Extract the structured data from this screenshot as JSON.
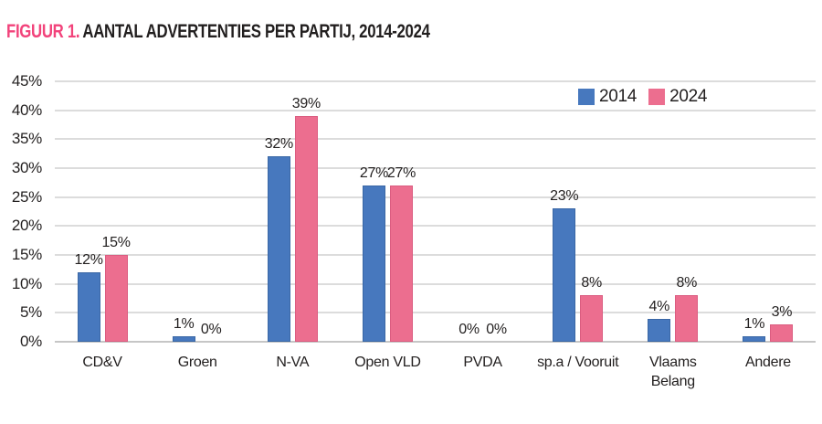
{
  "figure": {
    "label": "FIGUUR 1.",
    "title": "AANTAL ADVERTENTIES PER PARTIJ, 2014-2024",
    "label_color": "#F2437B",
    "text_color": "#221F1F"
  },
  "chart_data": {
    "type": "bar",
    "title": "FIGUUR 1. AANTAL ADVERTENTIES PER PARTIJ, 2014-2024",
    "categories": [
      "CD&V",
      "Groen",
      "N-VA",
      "Open VLD",
      "PVDA",
      "sp.a / Vooruit",
      "Vlaams Belang",
      "Andere"
    ],
    "series": [
      {
        "name": "2014",
        "color": "#4778BE",
        "border_color": "#3A67A5",
        "values": [
          12,
          1,
          32,
          27,
          0,
          23,
          4,
          1
        ],
        "labels": [
          "12%",
          "1%",
          "32%",
          "27%",
          "0%",
          "23%",
          "4%",
          "1%"
        ]
      },
      {
        "name": "2024",
        "color": "#EC6E8F",
        "border_color": "#DB5C80",
        "values": [
          15,
          0,
          39,
          27,
          0,
          8,
          8,
          3
        ],
        "labels": [
          "15%",
          "0%",
          "39%",
          "27%",
          "0%",
          "8%",
          "8%",
          "3%"
        ]
      }
    ],
    "xlabel": "",
    "ylabel": "",
    "ylim": [
      0,
      45
    ],
    "ytick_step": 5,
    "yticks": [
      "45%",
      "40%",
      "35%",
      "30%",
      "25%",
      "20%",
      "15%",
      "10%",
      "5%",
      "0%"
    ],
    "grid": true,
    "legend_position": "top-right",
    "gridline_color": "#DCDCDC",
    "axis_line_color": "#C6C6C6",
    "background_color": "#FFFFFF"
  }
}
